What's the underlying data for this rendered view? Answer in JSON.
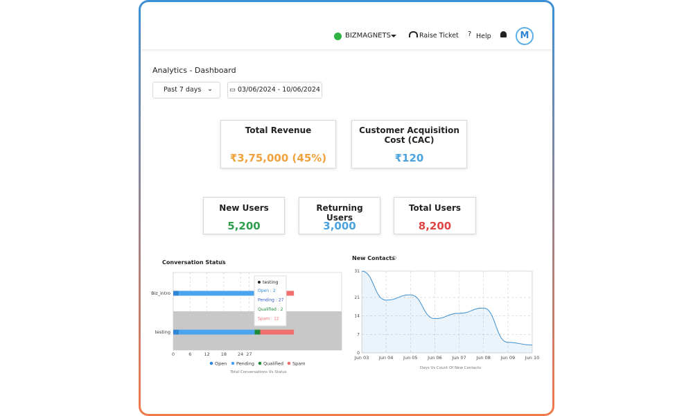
{
  "header": {
    "brand": "BIZMAGNETS",
    "ticket": "Raise Ticket",
    "help": "Help"
  },
  "page_title": "Analytics - Dashboard",
  "filters": {
    "range": "Past 7 days",
    "dates": "03/06/2024 - 10/06/2024"
  },
  "kpis": [
    {
      "label": "Total Revenue",
      "value": "₹3,75,000 (45%)",
      "color": "#f0a23c"
    },
    {
      "label": "Customer Acquisition Cost (CAC)",
      "value": "₹120",
      "color": "#4aa3df"
    },
    {
      "label": "New Users",
      "value": "5,200",
      "color": "#2f9e4f"
    },
    {
      "label": "Returning Users",
      "value": "3,000",
      "color": "#4aa3df"
    },
    {
      "label": "Total Users",
      "value": "8,200",
      "color": "#e04444"
    }
  ],
  "chart_data": [
    {
      "type": "hbar",
      "title": "Conversation Status",
      "caption": "Total Conversations Vs Status",
      "categories": [
        "Biz_intro",
        "testing"
      ],
      "series": [
        {
          "name": "Open",
          "color": "#2f86d6",
          "values": [
            2,
            2
          ]
        },
        {
          "name": "Pending",
          "color": "#4aa3ee",
          "values": [
            27,
            27
          ]
        },
        {
          "name": "Qualified",
          "color": "#1f8a3a",
          "values": [
            0,
            2
          ]
        },
        {
          "name": "Spam",
          "color": "#f07070",
          "values": [
            14,
            12
          ]
        }
      ],
      "xlim": [
        0,
        60
      ],
      "xticks": [
        0,
        6,
        12,
        18,
        24,
        27
      ],
      "tooltip": {
        "title": "testing",
        "lines": [
          "Open : 2",
          "Pending : 27",
          "Qualified : 2",
          "Spam : 12"
        ]
      }
    },
    {
      "type": "line",
      "title": "New Contacts",
      "caption": "Days Vs Count Of New Contacts",
      "categories": [
        "Jun 03",
        "Jun 04",
        "Jun 05",
        "Jun 06",
        "Jun 07",
        "Jun 08",
        "Jun 09",
        "Jun 10"
      ],
      "values": [
        31,
        20,
        22,
        13,
        15,
        17,
        4,
        3
      ],
      "color": "#3d8fd0",
      "ylim": [
        0,
        31
      ],
      "yticks": [
        0,
        7,
        14,
        21,
        31
      ]
    }
  ]
}
